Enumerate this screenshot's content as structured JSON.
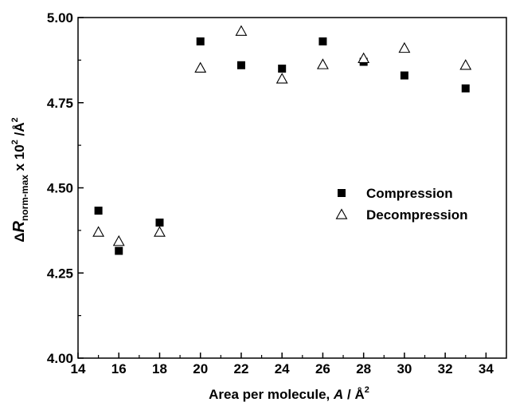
{
  "chart_data": {
    "type": "scatter",
    "xlabel": {
      "prefix": "Area per molecule, ",
      "var": "A",
      "unit_sep": " / ",
      "unit": "Å",
      "unit_sup": "2"
    },
    "ylabel": {
      "delta": "Δ",
      "var": "R",
      "sub": "norm-max",
      "mid": " x 10",
      "sup": "2",
      "tail": " /Å",
      "tail_sup": "2"
    },
    "xlim": [
      14,
      35
    ],
    "ylim": [
      4.0,
      5.0
    ],
    "x_ticks": [
      "14",
      "16",
      "18",
      "20",
      "22",
      "24",
      "26",
      "28",
      "30",
      "32",
      "34"
    ],
    "y_ticks": [
      "4.00",
      "4.25",
      "4.50",
      "4.75",
      "5.00"
    ],
    "legend_position": "right-center",
    "series": [
      {
        "name": "Compression",
        "marker": "filled-square",
        "color": "#000000",
        "x": [
          15,
          16,
          18,
          20,
          22,
          24,
          26,
          28,
          30,
          33
        ],
        "y": [
          4.433,
          4.315,
          4.398,
          4.93,
          4.86,
          4.85,
          4.93,
          4.87,
          4.83,
          4.792
        ]
      },
      {
        "name": "Decompression",
        "marker": "open-triangle",
        "color": "#000000",
        "x": [
          15,
          16,
          18,
          20,
          22,
          24,
          26,
          28,
          30,
          33
        ],
        "y": [
          4.37,
          4.343,
          4.37,
          4.852,
          4.96,
          4.82,
          4.862,
          4.88,
          4.91,
          4.86
        ]
      }
    ]
  }
}
